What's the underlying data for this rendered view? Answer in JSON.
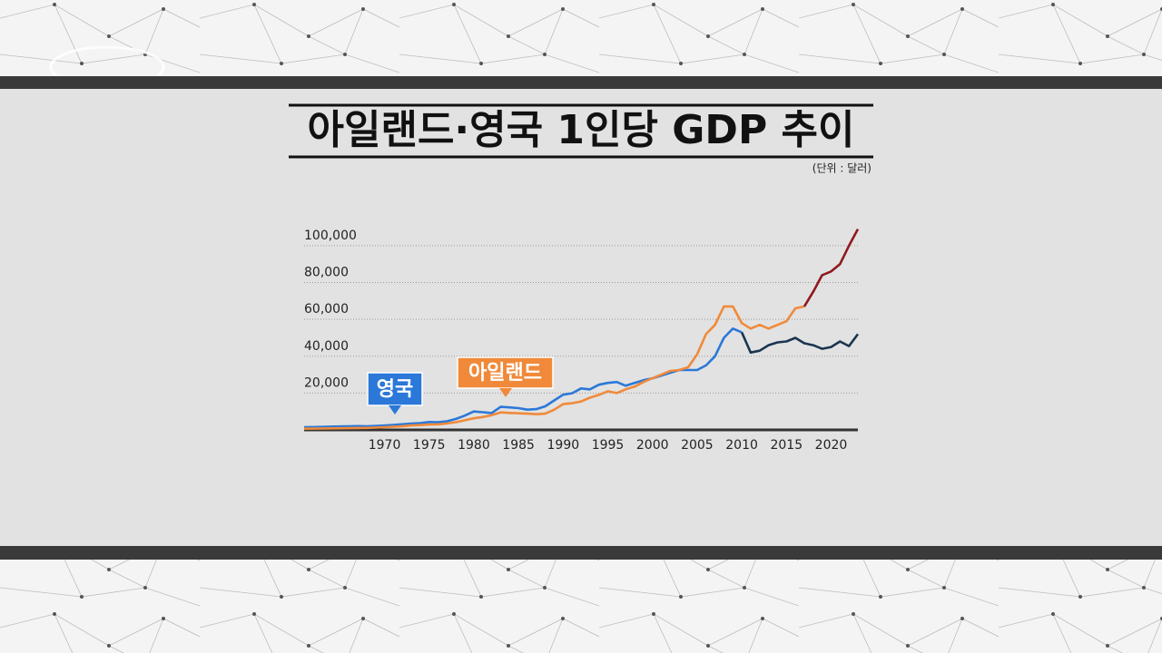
{
  "chart_data": {
    "type": "line",
    "title": "아일랜드·영국 1인당 GDP 추이",
    "subtitle": "(단위 : 달러)",
    "annotations": [
      "영국",
      "아일랜드"
    ],
    "x": [
      1961,
      1962,
      1963,
      1964,
      1965,
      1966,
      1967,
      1968,
      1969,
      1970,
      1971,
      1972,
      1973,
      1974,
      1975,
      1976,
      1977,
      1978,
      1979,
      1980,
      1981,
      1982,
      1983,
      1984,
      1985,
      1986,
      1987,
      1988,
      1989,
      1990,
      1991,
      1992,
      1993,
      1994,
      1995,
      1996,
      1997,
      1998,
      1999,
      2000,
      2001,
      2002,
      2003,
      2004,
      2005,
      2006,
      2007,
      2008,
      2009,
      2010,
      2011,
      2012,
      2013,
      2014,
      2015,
      2016,
      2017,
      2018,
      2019,
      2020,
      2021,
      2022,
      2023
    ],
    "series": [
      {
        "name": "영국",
        "color": "#2b78d8",
        "late_color": "#1a3550",
        "late_from": 2010,
        "values": [
          1450,
          1520,
          1610,
          1750,
          1870,
          1990,
          2060,
          1950,
          2100,
          2350,
          2650,
          3030,
          3430,
          3670,
          4300,
          4140,
          4680,
          5980,
          7800,
          10000,
          9600,
          9150,
          12500,
          12200,
          11800,
          11000,
          11300,
          12800,
          16000,
          19100,
          19900,
          22500,
          22000,
          24500,
          25500,
          26000,
          24000,
          25500,
          27000,
          28000,
          29500,
          31000,
          32500,
          32500,
          32500,
          35000,
          40000,
          50000,
          55000,
          53000,
          42000,
          43000,
          46000,
          47500,
          48000,
          50000,
          47000,
          46000,
          44000,
          45000,
          48000,
          45500,
          52000
        ]
      },
      {
        "name": "아일랜드",
        "color": "#f08a3a",
        "late_color": "#8e1a1f",
        "late_from": 2017,
        "values": [
          650,
          700,
          750,
          820,
          900,
          950,
          1050,
          1100,
          1250,
          1500,
          1700,
          2000,
          2400,
          2600,
          2900,
          3000,
          3500,
          4200,
          5200,
          6300,
          7000,
          8000,
          9500,
          9200,
          9000,
          8800,
          8500,
          8800,
          11000,
          14000,
          14500,
          15400,
          17500,
          19000,
          21000,
          20000,
          22000,
          23500,
          26000,
          28000,
          30000,
          32000,
          32500,
          34000,
          41000,
          52000,
          57000,
          67000,
          67000,
          58000,
          55000,
          57000,
          55000,
          57000,
          59000,
          66000,
          67000,
          75000,
          84000,
          86000,
          90000,
          100000,
          109000
        ]
      }
    ],
    "xlim": [
      1961,
      2023
    ],
    "xticks": [
      1970,
      1975,
      1980,
      1985,
      1990,
      1995,
      2000,
      2005,
      2010,
      2015,
      2020
    ],
    "ylim": [
      0,
      110000
    ],
    "yticks": [
      {
        "value": 20000,
        "label": "20,000"
      },
      {
        "value": 40000,
        "label": "40,000"
      },
      {
        "value": 60000,
        "label": "60,000"
      },
      {
        "value": 80000,
        "label": "80,000"
      },
      {
        "value": 100000,
        "label": "100,000"
      }
    ],
    "grid": true
  }
}
